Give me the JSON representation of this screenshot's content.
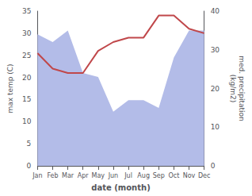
{
  "chart_data": {
    "type": "line",
    "categories": [
      "Jan",
      "Feb",
      "Mar",
      "Apr",
      "May",
      "Jun",
      "Jul",
      "Aug",
      "Sep",
      "Oct",
      "Nov",
      "Dec"
    ],
    "series": [
      {
        "type": "area",
        "axis": "y2",
        "color": "#b3bce8",
        "values": [
          34,
          32,
          35,
          24,
          23,
          14,
          17,
          17,
          15,
          28,
          35,
          35
        ]
      },
      {
        "type": "line",
        "color": "#c0474a",
        "values": [
          25.5,
          22,
          21,
          21,
          26,
          28,
          29,
          29,
          34,
          34,
          31,
          30
        ]
      }
    ],
    "xlabel": "date (month)",
    "ylabel": "max temp (C)",
    "y2label": "med. precipitation\n(kg/m2)",
    "ylim": [
      0,
      35
    ],
    "yticks": [
      0,
      5,
      10,
      15,
      20,
      25,
      30,
      35
    ],
    "y2lim": [
      0,
      40
    ],
    "y2ticks": [
      0,
      10,
      20,
      30,
      40
    ],
    "grid": false
  }
}
